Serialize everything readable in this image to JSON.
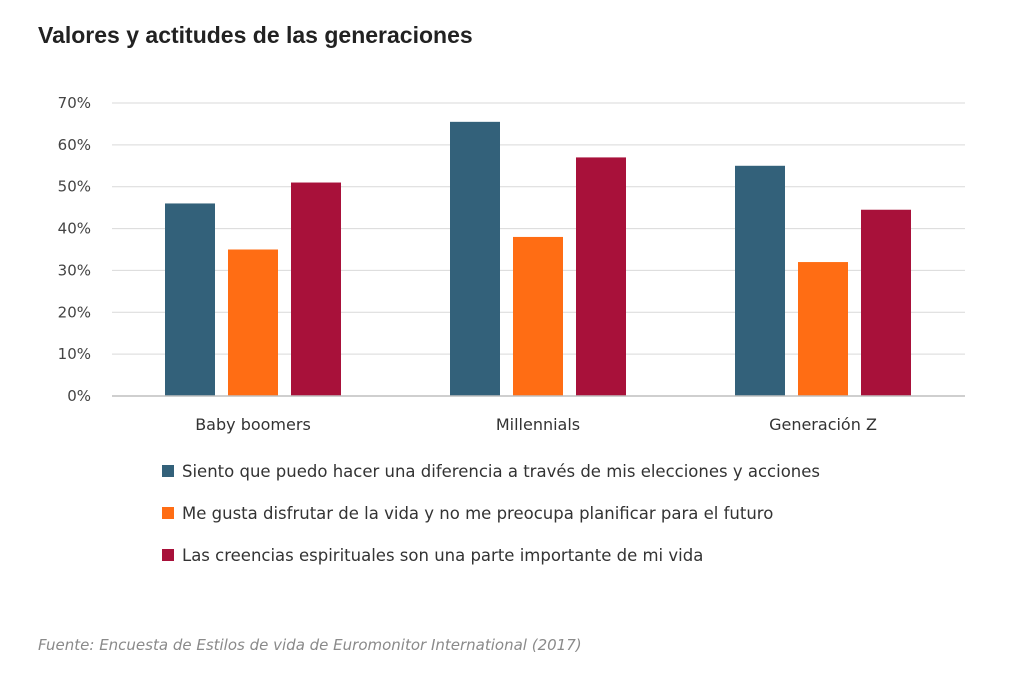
{
  "chart_data": {
    "type": "bar",
    "title": "Valores y actitudes de las generaciones",
    "categories": [
      "Baby boomers",
      "Millennials",
      "Generación Z"
    ],
    "series": [
      {
        "name": "Siento que puedo hacer una diferencia a través de mis elecciones y acciones",
        "color": "#33617a",
        "values": [
          46,
          65.5,
          55
        ]
      },
      {
        "name": "Me gusta disfrutar de la vida y no me preocupa planificar para el futuro",
        "color": "#ff6d14",
        "values": [
          35,
          38,
          32
        ]
      },
      {
        "name": "Las creencias espirituales son una parte importante de mi vida",
        "color": "#a8113a",
        "values": [
          51,
          57,
          44.5
        ]
      }
    ],
    "ylim": [
      0,
      70
    ],
    "yticks": [
      0,
      10,
      20,
      30,
      40,
      50,
      60,
      70
    ],
    "ytick_labels": [
      "0%",
      "10%",
      "20%",
      "30%",
      "40%",
      "50%",
      "60%",
      "70%"
    ],
    "grid": true,
    "legend_position": "bottom",
    "xlabel": "",
    "ylabel": ""
  },
  "source": "Fuente: Encuesta de Estilos de vida de Euromonitor International (2017)"
}
